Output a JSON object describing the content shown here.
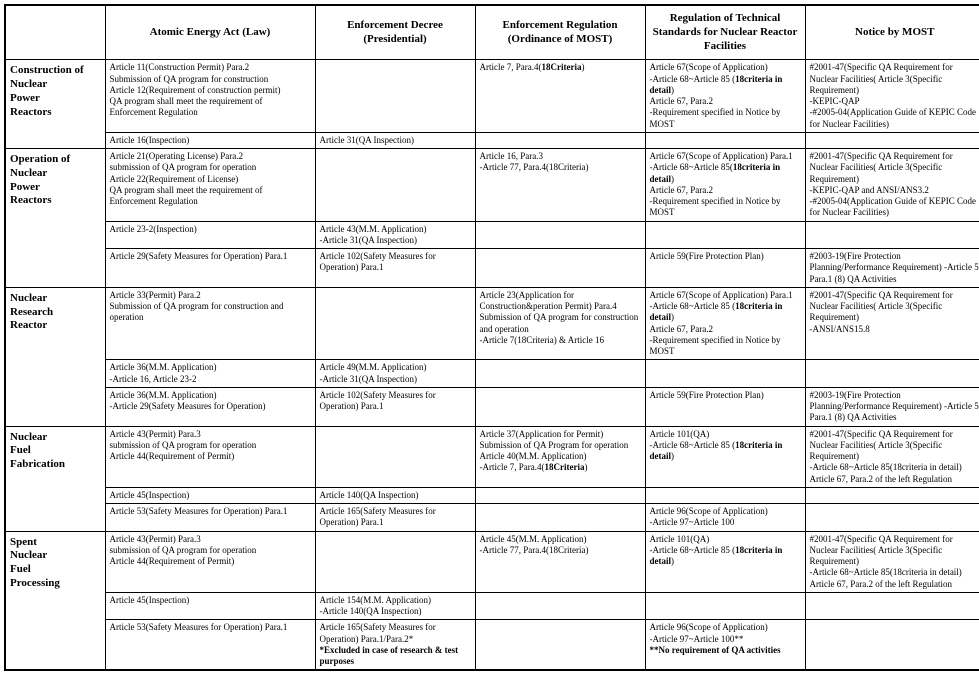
{
  "headers": {
    "h0": "",
    "h1": "Atomic Energy Act (Law)",
    "h2": "Enforcement Decree (Presidential)",
    "h3": "Enforcement Regulation (Ordinance of MOST)",
    "h4": "Regulation of Technical Standards for Nuclear Reactor Facilities",
    "h5": "Notice by MOST"
  },
  "sections": [
    {
      "title": "Construction of Nuclear Power Reactors",
      "rows": [
        {
          "c1": "Article 11(Construction Permit) Para.2\nSubmission of QA program for construction\nArticle 12(Requirement of construction permit)\nQA program shall meet the requirement of Enforcement Regulation",
          "c2": "",
          "c3": "Article 7, Para.4(<b>18Criteria</b>)",
          "c4": "Article 67(Scope of Application)\n-Article 68~Article 85 (<b>18criteria in detail</b>)\nArticle 67, Para.2\n-Requirement specified in Notice by MOST",
          "c5": "#2001-47(Specific QA Requirement for Nuclear Facilities( Article 3(Specific Requirement)\n-KEPIC-QAP\n-#2005-04(Application Guide of KEPIC Code for Nuclear Facilities)"
        },
        {
          "c1": "Article 16(Inspection)",
          "c2": "Article 31(QA Inspection)",
          "c3": "",
          "c4": "",
          "c5": ""
        }
      ]
    },
    {
      "title": "Operation of Nuclear Power Reactors",
      "rows": [
        {
          "c1": "Article 21(Operating License) Para.2\nsubmission of QA program for operation\nArticle 22(Requirement of License)\nQA program shall meet the requirement of Enforcement Regulation",
          "c2": "",
          "c3": "Article 16, Para.3\n-Article 77, Para.4(18Criteria)",
          "c4": "Article 67(Scope of Application) Para.1\n-Article 68~Article 85(<b>18criteria in detail</b>)\nArticle 67, Para.2\n-Requirement specified in Notice by MOST",
          "c5": "#2001-47(Specific QA Requirement for Nuclear Facilities( Article 3(Specific Requirement)\n-KEPIC-QAP and ANSI/ANS3.2\n-#2005-04(Application Guide of KEPIC Code for Nuclear Facilities)"
        },
        {
          "c1": "Article 23-2(Inspection)",
          "c2": "Article 43(M.M. Application)\n-Article 31(QA Inspection)",
          "c3": "",
          "c4": "",
          "c5": ""
        },
        {
          "c1": "Article 29(Safety Measures for Operation) Para.1",
          "c2": "Article 102(Safety Measures for Operation) Para.1",
          "c3": "",
          "c4": "Article 59(Fire Protection Plan)",
          "c5": "#2003-19(Fire Protection Planning/Performance Requirement) -Article 5 Para.1 (8) QA Activities"
        }
      ]
    },
    {
      "title": "Nuclear Research Reactor",
      "rows": [
        {
          "c1": "Article 33(Permit) Para.2\nSubmission of QA program for construction and operation",
          "c2": "",
          "c3": "Article 23(Application for Construction&peration Permit) Para.4\nSubmission of QA program for construction and operation\n-Article 7(18Criteria) & Article 16",
          "c4": "Article 67(Scope of Application) Para.1\n-Article 68~Article 85 (<b>18criteria in detail</b>)\nArticle 67, Para.2\n-Requirement specified in Notice by MOST",
          "c5": "#2001-47(Specific QA Requirement for Nuclear Facilities( Article 3(Specific Requirement)\n-ANSI/ANS15.8"
        },
        {
          "c1": "Article 36(M.M. Application)\n-Article 16, Article 23-2",
          "c2": "Article 49(M.M. Application)\n-Article 31(QA Inspection)",
          "c3": "",
          "c4": "",
          "c5": ""
        },
        {
          "c1": "Article 36(M.M. Application)\n-Article 29(Safety Measures for Operation)",
          "c2": "Article 102(Safety Measures for Operation) Para.1",
          "c3": "",
          "c4": "Article 59(Fire Protection Plan)",
          "c5": "#2003-19(Fire Protection Planning/Performance Requirement) -Article 5 Para.1 (8) QA Activities"
        }
      ]
    },
    {
      "title": "Nuclear Fuel Fabrication",
      "rows": [
        {
          "c1": "Article 43(Permit) Para.3\nsubmission of QA program for operation\nArticle 44(Requirement of Permit)",
          "c2": "",
          "c3": "Article 37(Application for Permit)\nSubmission of QA Program for operation\nArticle 40(M.M. Application)\n-Article 7, Para.4(<b>18Criteria</b>)",
          "c4": "Article 101(QA)\n-Article 68~Article 85 (<b>18criteria in detail</b>)",
          "c5": "#2001-47(Specific QA Requirement for Nuclear Facilities( Article 3(Specific Requirement)\n-Article 68~Article 85(18criteria in detail)\nArticle 67, Para.2 of the left Regulation"
        },
        {
          "c1": "Article 45(Inspection)",
          "c2": "Article 140(QA Inspection)",
          "c3": "",
          "c4": "",
          "c5": ""
        },
        {
          "c1": "Article 53(Safety Measures for Operation) Para.1",
          "c2": "Article 165(Safety Measures for Operation) Para.1",
          "c3": "",
          "c4": "Article 96(Scope of Application)\n-Article 97~Article 100",
          "c5": ""
        }
      ]
    },
    {
      "title": "Spent Nuclear Fuel Processing",
      "rows": [
        {
          "c1": "Article 43(Permit) Para.3\nsubmission of QA program for operation\nArticle 44(Requirement of Permit)",
          "c2": "",
          "c3": "Article 45(M.M. Application)\n-Article 77, Para.4(18Criteria)",
          "c4": "Article 101(QA)\n-Article 68~Article 85 (<b>18criteria in detail</b>)",
          "c5": "#2001-47(Specific QA Requirement for Nuclear Facilities( Article 3(Specific Requirement)\n-Article 68~Article 85(18criteria in detail)\nArticle 67, Para.2 of the left Regulation"
        },
        {
          "c1": "Article 45(Inspection)",
          "c2": "Article 154(M.M. Application)\n-Article 140(QA Inspection)",
          "c3": "",
          "c4": "",
          "c5": ""
        },
        {
          "c1": "Article 53(Safety Measures for Operation) Para.1",
          "c2": "Article 165(Safety Measures for Operation) Para.1/Para.2*\n<b>*Excluded in case of research & test purposes</b>",
          "c3": "",
          "c4": "Article 96(Scope of Application)\n-Article 97~Article 100**\n<b>**No requirement of QA activities</b>",
          "c5": ""
        }
      ]
    }
  ]
}
